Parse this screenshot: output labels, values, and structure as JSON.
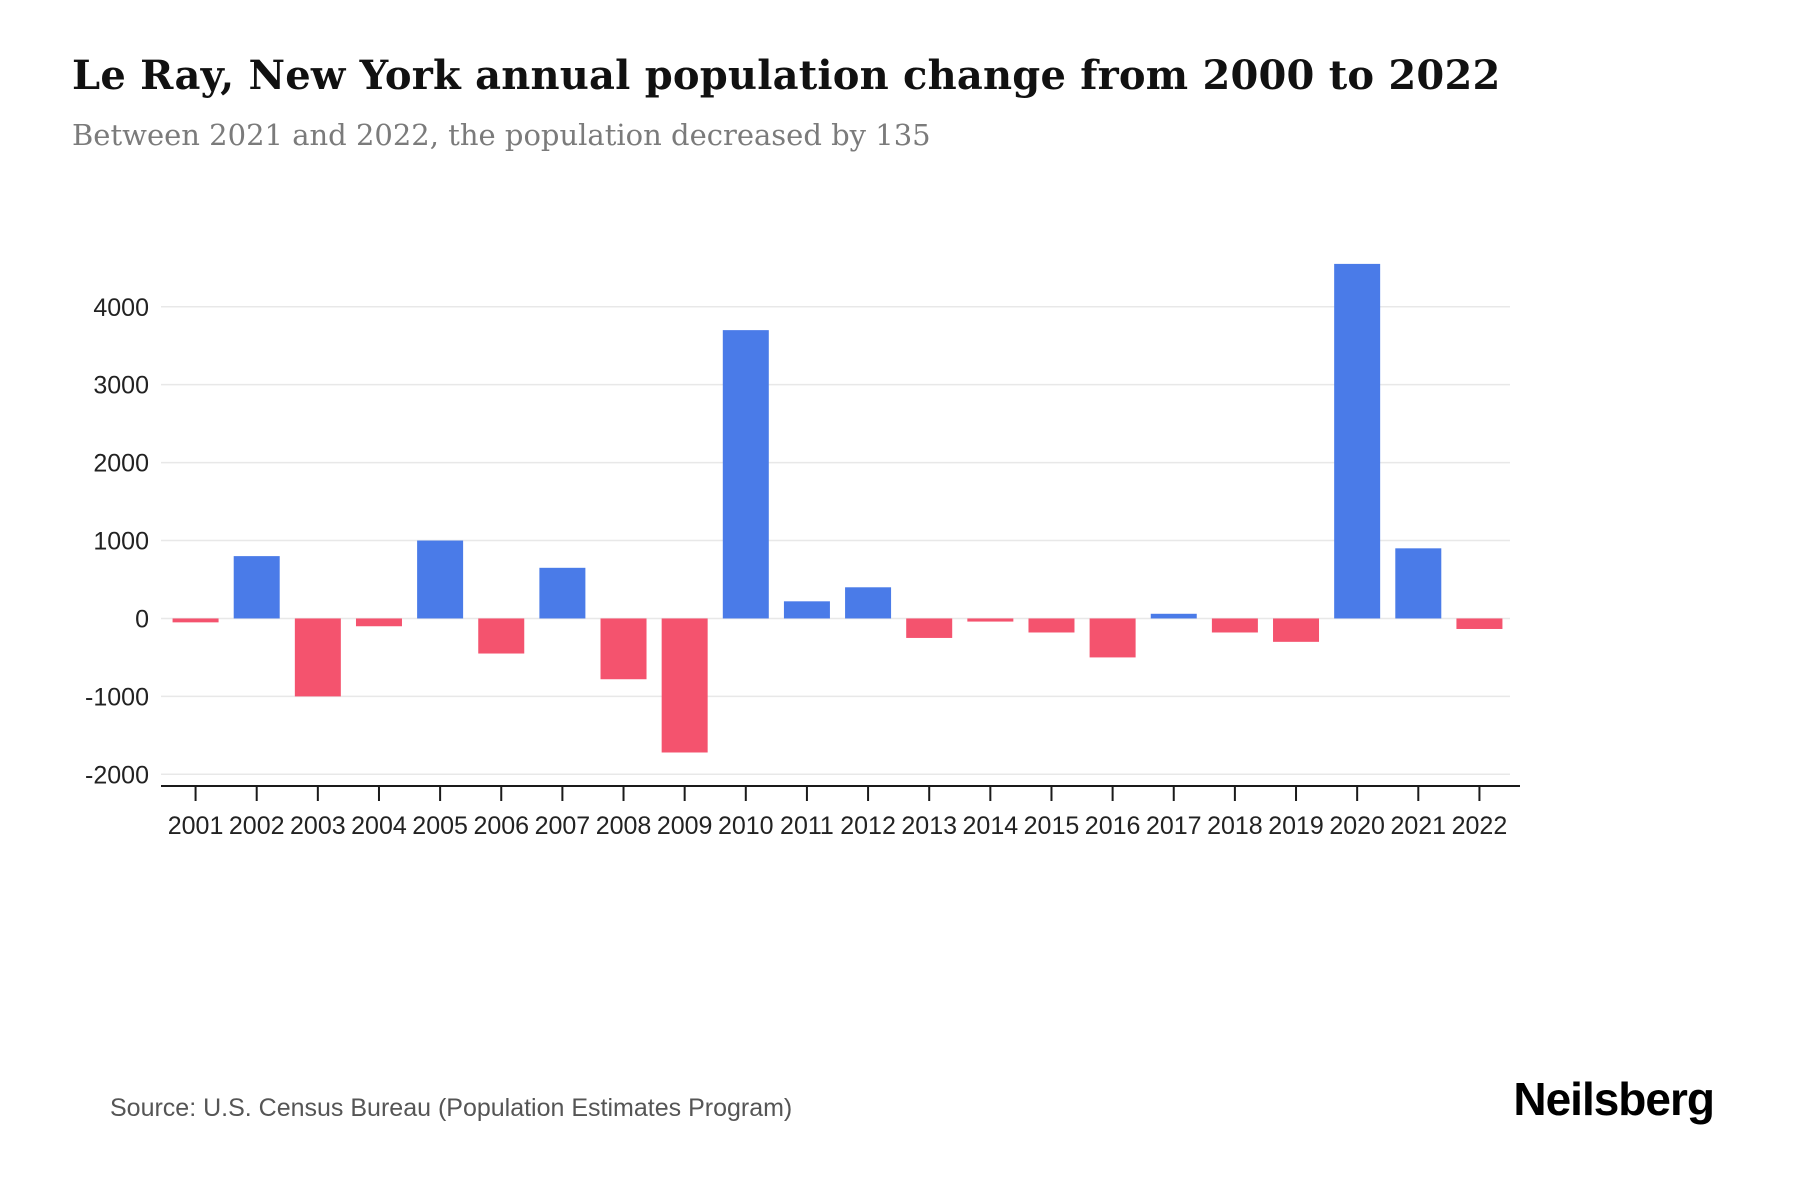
{
  "header": {
    "title": "Le Ray, New York annual population change from 2000 to 2022",
    "subtitle": "Between 2021 and 2022, the population decreased by 135"
  },
  "footer": {
    "source": "Source: U.S. Census Bureau (Population Estimates Program)",
    "brand": "Neilsberg"
  },
  "chart_data": {
    "type": "bar",
    "title": "Le Ray, New York annual population change from 2000 to 2022",
    "subtitle": "Between 2021 and 2022, the population decreased by 135",
    "xlabel": "",
    "ylabel": "",
    "categories": [
      "2001",
      "2002",
      "2003",
      "2004",
      "2005",
      "2006",
      "2007",
      "2008",
      "2009",
      "2010",
      "2011",
      "2012",
      "2013",
      "2014",
      "2015",
      "2016",
      "2017",
      "2018",
      "2019",
      "2020",
      "2021",
      "2022"
    ],
    "values": [
      -50,
      800,
      -1000,
      -100,
      1000,
      -450,
      650,
      -780,
      -1720,
      3700,
      220,
      400,
      -250,
      -40,
      -180,
      -500,
      60,
      -180,
      -300,
      4550,
      900,
      -135
    ],
    "ylim": [
      -2150,
      4600
    ],
    "yticks": [
      -2000,
      -1000,
      0,
      1000,
      2000,
      3000,
      4000
    ],
    "grid": true,
    "legend_position": "none",
    "colors": {
      "positive": "#4a7be8",
      "negative": "#f4536e",
      "gridline": "#e8e8e8",
      "axis": "#1a1a1a",
      "tick_label": "#222222"
    }
  }
}
